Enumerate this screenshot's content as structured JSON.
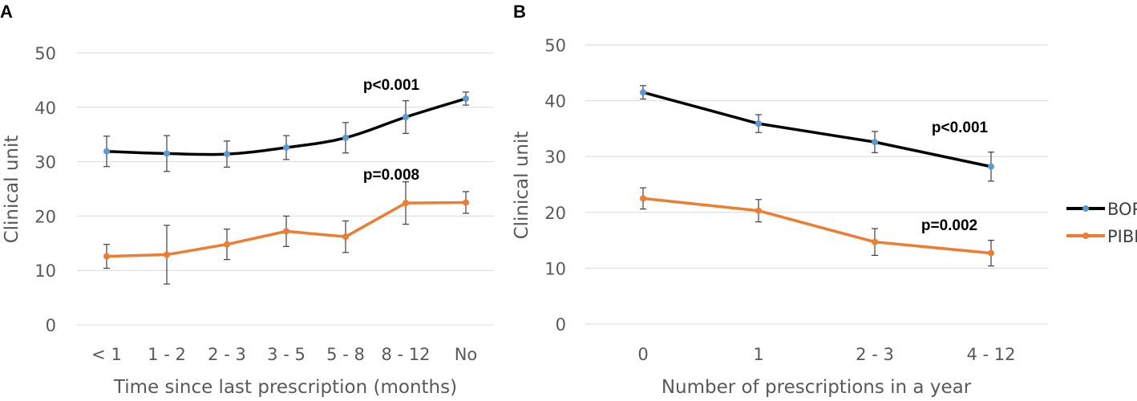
{
  "chart_data": [
    {
      "panel": "A",
      "type": "line",
      "categories": [
        "< 1",
        "1 - 2",
        "2 - 3",
        "3 - 5",
        "5 - 8",
        "8 - 12",
        "No"
      ],
      "ylabel": "Clinical unit",
      "xlabel": "Time since last prescription (months)",
      "ylim": [
        0,
        50
      ],
      "yticks": [
        0,
        10,
        20,
        30,
        40,
        50
      ],
      "grid": true,
      "series": [
        {
          "name": "BOP",
          "color": "#000000",
          "marker_color": "#5b9bd5",
          "values": [
            31.9,
            31.5,
            31.4,
            32.6,
            34.4,
            38.2,
            41.6
          ],
          "error": [
            2.8,
            3.3,
            2.4,
            2.2,
            2.8,
            3.0,
            1.2
          ]
        },
        {
          "name": "PIBI",
          "color": "#ed7d31",
          "marker_color": "#ed7d31",
          "values": [
            12.6,
            12.9,
            14.8,
            17.2,
            16.2,
            22.4,
            22.5
          ],
          "error": [
            2.2,
            5.4,
            2.8,
            2.8,
            2.9,
            3.9,
            2.0
          ]
        }
      ],
      "annotations": [
        {
          "text": "p<0.001",
          "series": "BOP"
        },
        {
          "text": "p=0.008",
          "series": "PIBI"
        }
      ]
    },
    {
      "panel": "B",
      "type": "line",
      "categories": [
        "0",
        "1",
        "2 - 3",
        "4 - 12"
      ],
      "ylabel": "Clinical unit",
      "xlabel": "Number of prescriptions in a year",
      "ylim": [
        0,
        50
      ],
      "yticks": [
        0,
        10,
        20,
        30,
        40,
        50
      ],
      "grid": true,
      "series": [
        {
          "name": "BOP",
          "color": "#000000",
          "marker_color": "#5b9bd5",
          "values": [
            41.5,
            35.9,
            32.6,
            28.2
          ],
          "error": [
            1.2,
            1.6,
            1.9,
            2.6
          ]
        },
        {
          "name": "PIBI",
          "color": "#ed7d31",
          "marker_color": "#ed7d31",
          "values": [
            22.5,
            20.3,
            14.7,
            12.7
          ],
          "error": [
            1.9,
            2.0,
            2.4,
            2.3
          ]
        }
      ],
      "annotations": [
        {
          "text": "p<0.001",
          "series": "BOP"
        },
        {
          "text": "p=0.002",
          "series": "PIBI"
        }
      ]
    }
  ],
  "legend": {
    "placement": "right",
    "items": [
      {
        "name": "BOP",
        "color": "#000000",
        "marker_color": "#5b9bd5"
      },
      {
        "name": "PIBI",
        "color": "#ed7d31",
        "marker_color": "#ed7d31"
      }
    ]
  }
}
